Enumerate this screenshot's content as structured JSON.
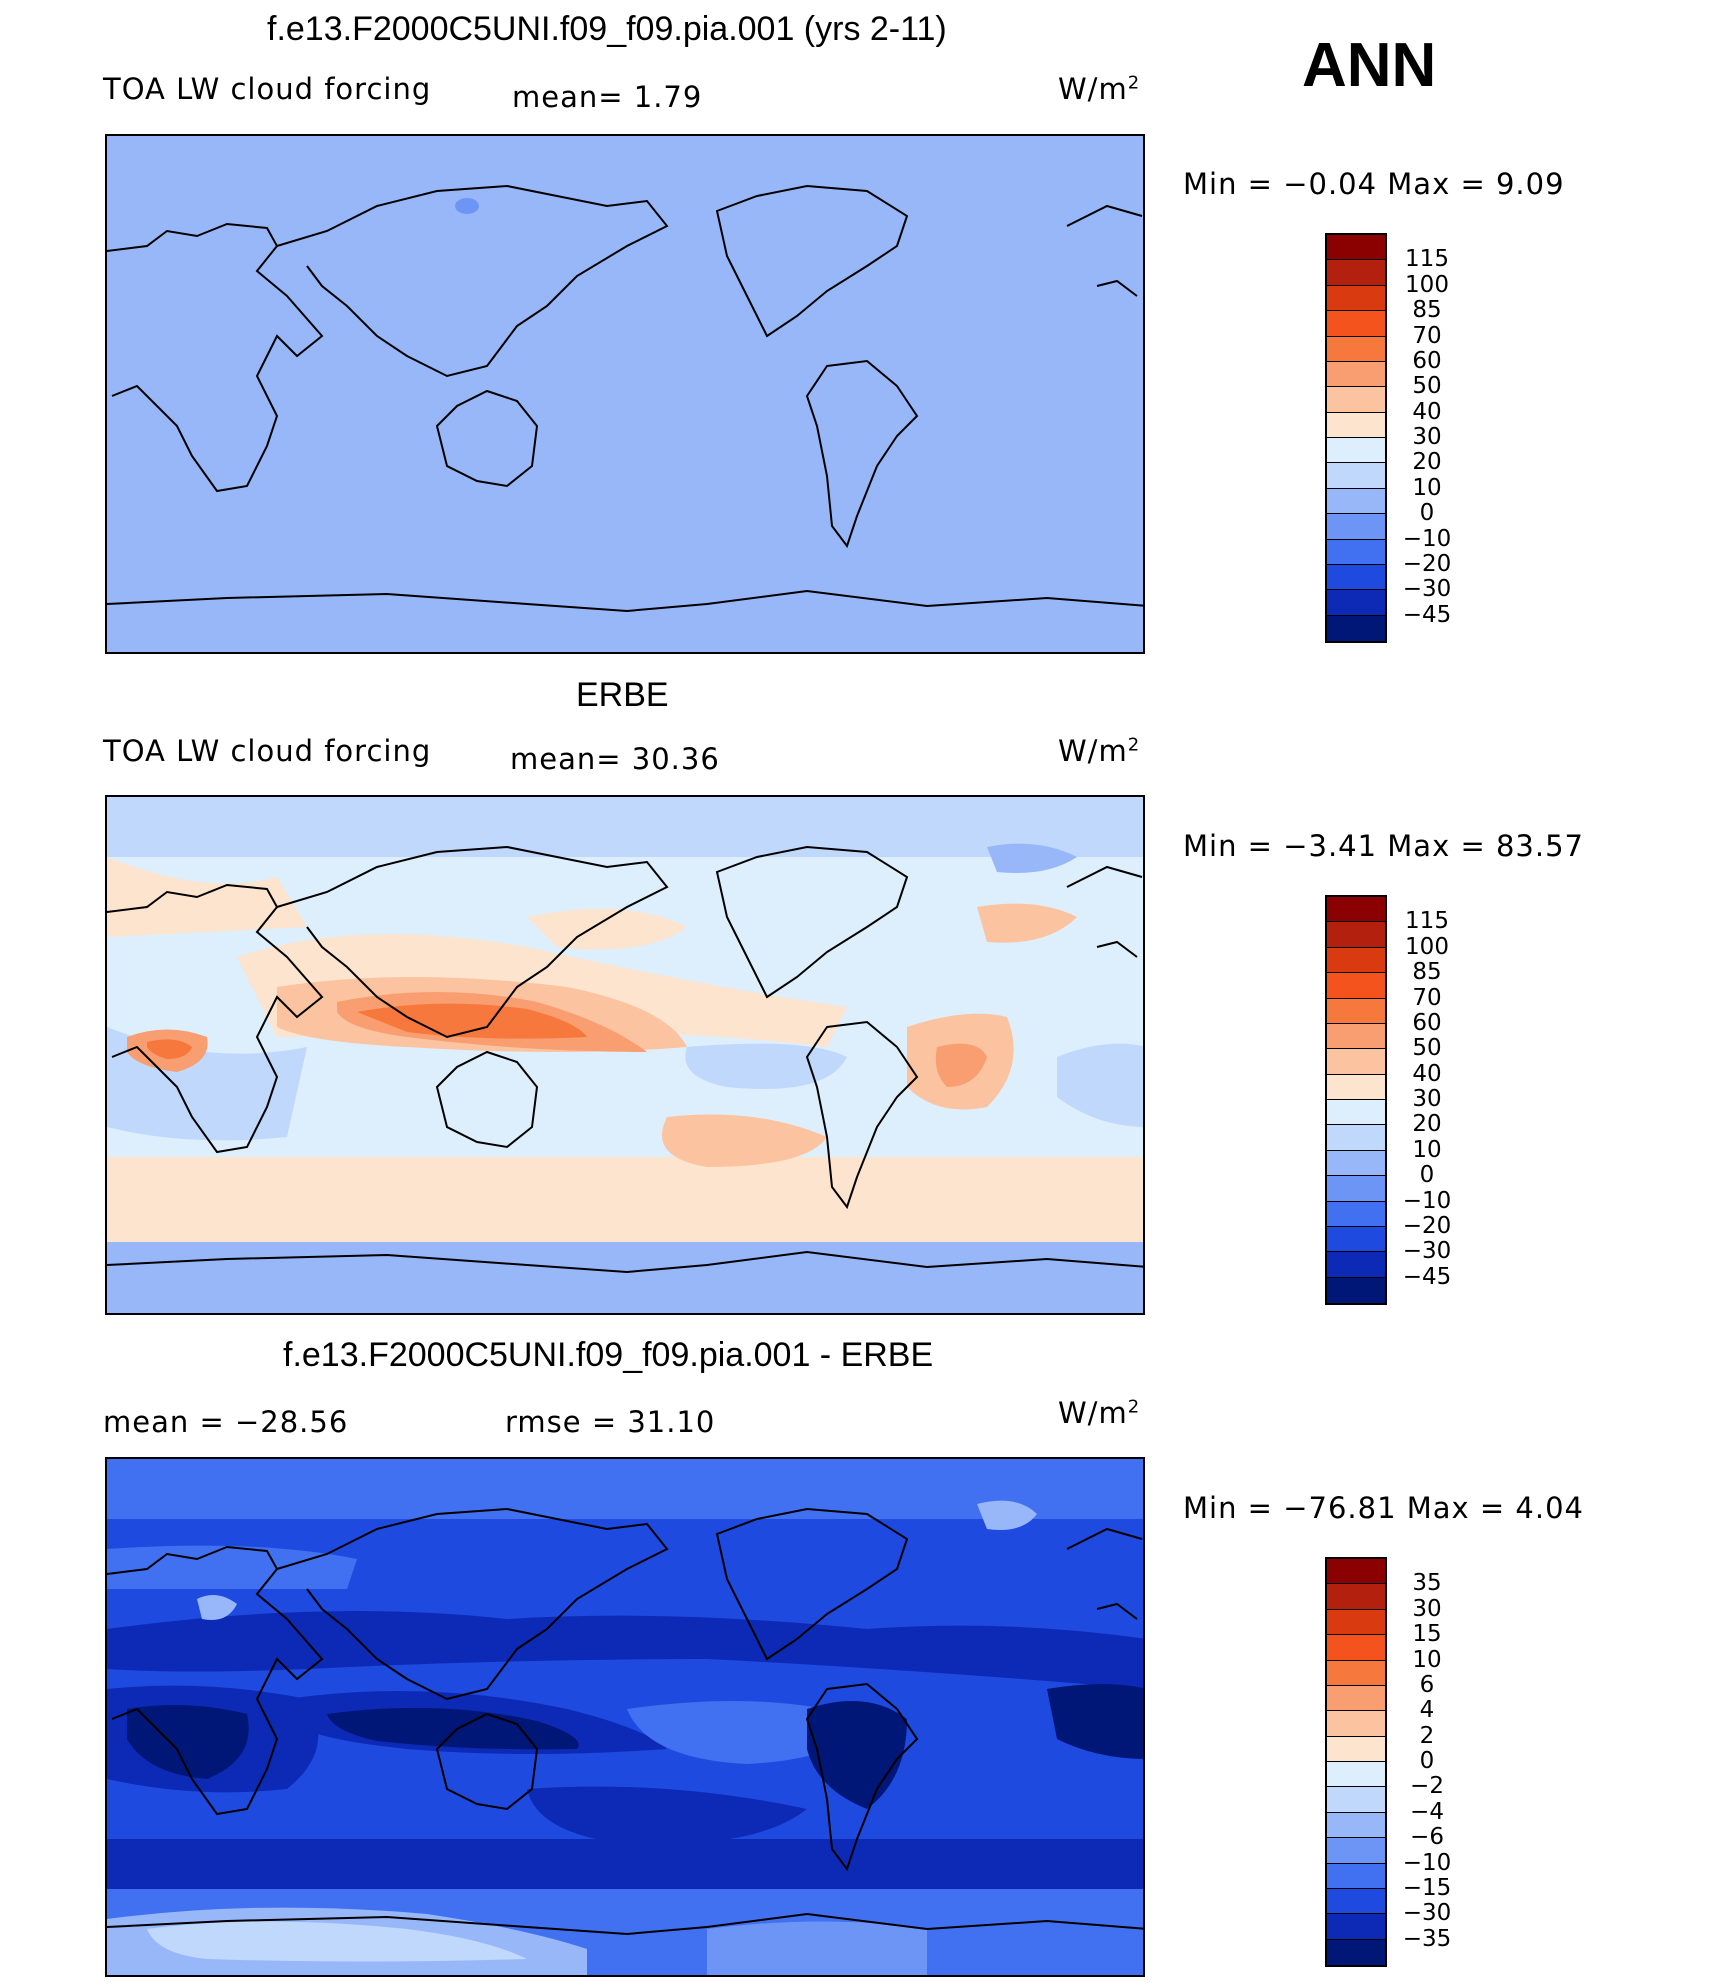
{
  "season": "ANN",
  "panels": [
    {
      "title": "f.e13.F2000C5UNI.f09_f09.pia.001 (yrs 2-11)",
      "left_label": "TOA LW cloud forcing",
      "stat_text": "mean=    1.79",
      "units": "W/m",
      "units_sup": "2",
      "minmax": "Min  =    −0.04  Max  =     9.09",
      "levels": [
        "115",
        "100",
        "85",
        "70",
        "60",
        "50",
        "40",
        "30",
        "20",
        "10",
        "0",
        "−10",
        "−20",
        "−30",
        "−45"
      ],
      "colors": [
        "#8b0000",
        "#b3200e",
        "#d93a0f",
        "#f4531d",
        "#f7783c",
        "#f99e70",
        "#fbc3a0",
        "#fde4cf",
        "#ddeefc",
        "#c0d8fb",
        "#97b7f9",
        "#6d95f5",
        "#4171f0",
        "#1f4ae0",
        "#0d2ab6",
        "#001777"
      ]
    },
    {
      "title": "ERBE",
      "left_label": "TOA LW cloud forcing",
      "stat_text": "mean=   30.36",
      "units": "W/m",
      "units_sup": "2",
      "minmax": "Min  =    −3.41  Max  =    83.57",
      "levels": [
        "115",
        "100",
        "85",
        "70",
        "60",
        "50",
        "40",
        "30",
        "20",
        "10",
        "0",
        "−10",
        "−20",
        "−30",
        "−45"
      ],
      "colors": [
        "#8b0000",
        "#b3200e",
        "#d93a0f",
        "#f4531d",
        "#f7783c",
        "#f99e70",
        "#fbc3a0",
        "#fde4cf",
        "#ddeefc",
        "#c0d8fb",
        "#97b7f9",
        "#6d95f5",
        "#4171f0",
        "#1f4ae0",
        "#0d2ab6",
        "#001777"
      ]
    },
    {
      "title": "f.e13.F2000C5UNI.f09_f09.pia.001 - ERBE",
      "left_label": "mean  =  −28.56",
      "stat_text": "rmse  =    31.10",
      "units": "W/m",
      "units_sup": "2",
      "minmax": "Min  =  −76.81  Max  =     4.04",
      "levels": [
        "35",
        "30",
        "15",
        "10",
        "6",
        "4",
        "2",
        "0",
        "−2",
        "−4",
        "−6",
        "−10",
        "−15",
        "−30",
        "−35"
      ],
      "colors": [
        "#8b0000",
        "#b3200e",
        "#d93a0f",
        "#f4531d",
        "#f7783c",
        "#f99e70",
        "#fbc3a0",
        "#fde4cf",
        "#ddeefc",
        "#c0d8fb",
        "#97b7f9",
        "#6d95f5",
        "#4171f0",
        "#1f4ae0",
        "#0d2ab6",
        "#001777"
      ]
    }
  ],
  "chart_data": [
    {
      "type": "heatmap",
      "title": "f.e13.F2000C5UNI.f09_f09.pia.001 (yrs 2-11)",
      "variable": "TOA LW cloud forcing",
      "units": "W/m2",
      "mean": 1.79,
      "min": -0.04,
      "max": 9.09,
      "color_levels": [
        115,
        100,
        85,
        70,
        60,
        50,
        40,
        30,
        20,
        10,
        0,
        -10,
        -20,
        -30,
        -45
      ]
    },
    {
      "type": "heatmap",
      "title": "ERBE",
      "variable": "TOA LW cloud forcing",
      "units": "W/m2",
      "mean": 30.36,
      "min": -3.41,
      "max": 83.57,
      "color_levels": [
        115,
        100,
        85,
        70,
        60,
        50,
        40,
        30,
        20,
        10,
        0,
        -10,
        -20,
        -30,
        -45
      ]
    },
    {
      "type": "heatmap",
      "title": "f.e13.F2000C5UNI.f09_f09.pia.001 - ERBE",
      "units": "W/m2",
      "mean": -28.56,
      "rmse": 31.1,
      "min": -76.81,
      "max": 4.04,
      "color_levels": [
        35,
        30,
        15,
        10,
        6,
        4,
        2,
        0,
        -2,
        -4,
        -6,
        -10,
        -15,
        -30,
        -35
      ]
    }
  ]
}
